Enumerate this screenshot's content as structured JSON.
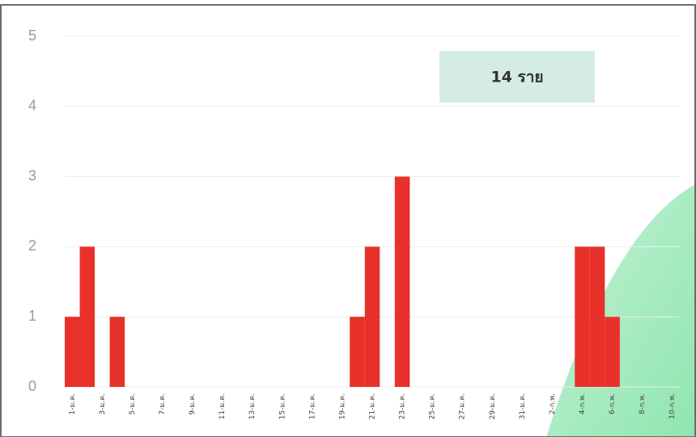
{
  "chart_data": {
    "type": "bar",
    "categories": [
      "1-ม.ค.",
      null,
      "3-ม.ค.",
      null,
      "5-ม.ค.",
      null,
      "7-ม.ค.",
      null,
      "9-ม.ค.",
      null,
      "11-ม.ค.",
      null,
      "13-ม.ค.",
      null,
      "15-ม.ค.",
      null,
      "17-ม.ค.",
      null,
      "19-ม.ค.",
      null,
      "21-ม.ค.",
      null,
      "23-ม.ค.",
      null,
      "25-ม.ค.",
      null,
      "27-ม.ค.",
      null,
      "29-ม.ค.",
      null,
      "31-ม.ค.",
      null,
      "2-ก.พ.",
      null,
      "4-ก.พ.",
      null,
      "6-ก.พ.",
      null,
      "8-ก.พ.",
      null,
      "10-ก.พ."
    ],
    "values": [
      1,
      2,
      0,
      1,
      0,
      0,
      0,
      0,
      0,
      0,
      0,
      0,
      0,
      0,
      0,
      0,
      0,
      0,
      0,
      1,
      2,
      0,
      3,
      0,
      0,
      0,
      0,
      0,
      0,
      0,
      0,
      0,
      0,
      0,
      2,
      2,
      1,
      0,
      0,
      0,
      0
    ],
    "color": "#e8312a",
    "ylim": [
      0,
      5
    ],
    "yticks": [
      0,
      1,
      2,
      3,
      4,
      5
    ],
    "grid": true,
    "annotation": "14 ราย"
  }
}
